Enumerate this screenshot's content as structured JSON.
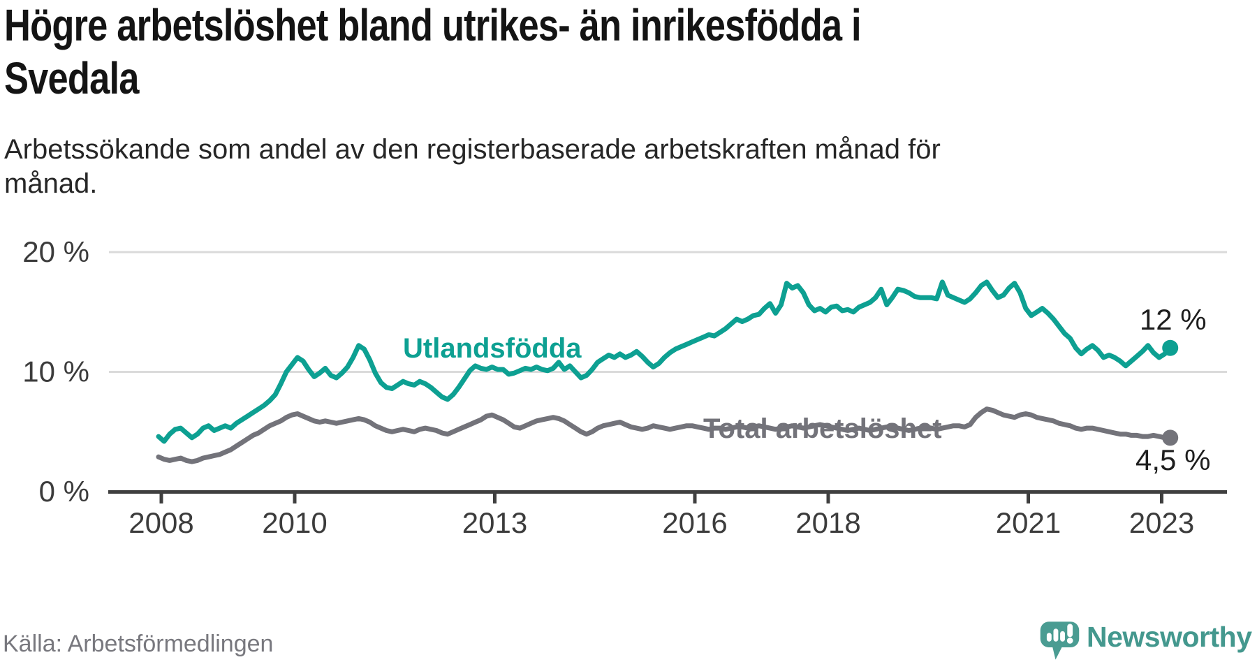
{
  "header": {
    "title": "Högre arbetslöshet bland utrikes- än inrikesfödda i Svedala",
    "title_lines": [
      "Högre arbetslöshet bland utrikes- än inrikesfödda i",
      "Svedala"
    ],
    "subtitle": "Arbetssökande som andel av den registerbaserade arbetskraften månad för månad.",
    "subtitle_lines": [
      "Arbetssökande som andel av den registerbaserade arbetskraften månad för",
      "månad."
    ]
  },
  "footer": {
    "source": "Källa: Arbetsförmedlingen",
    "brand": "Newsworthy"
  },
  "colors": {
    "accent_teal": "#0da092",
    "line_gray": "#73737a",
    "axis": "#3f3f3f",
    "grid": "#dadada",
    "text_dark": "#1e1e1e",
    "brand_teal": "#44988e",
    "brand_icon": "#4a9c92"
  },
  "chart_data": {
    "type": "line",
    "title": "Högre arbetslöshet bland utrikes- än inrikesfödda i Svedala",
    "subtitle": "Arbetssökande som andel av den registerbaserade arbetskraften månad för månad.",
    "x_start": "2008-01",
    "x_end": "2023-03",
    "x_freq": "monthly",
    "xticks": [
      2008,
      2010,
      2013,
      2016,
      2018,
      2021,
      2023
    ],
    "ylim": [
      0,
      20
    ],
    "yticks": [
      {
        "value": 0,
        "label": "0 %"
      },
      {
        "value": 10,
        "label": "10 %"
      },
      {
        "value": 20,
        "label": "20 %"
      }
    ],
    "grid": "horizontal",
    "legend": "inline-labels",
    "series": [
      {
        "name": "Utlandsfödda",
        "color": "#0da092",
        "end_label": "12 %",
        "values": [
          4.6,
          4.2,
          4.8,
          5.2,
          5.3,
          4.9,
          4.5,
          4.8,
          5.3,
          5.5,
          5.1,
          5.3,
          5.5,
          5.3,
          5.7,
          6.0,
          6.3,
          6.6,
          6.9,
          7.2,
          7.6,
          8.1,
          9.0,
          10.0,
          10.6,
          11.2,
          10.9,
          10.2,
          9.6,
          9.9,
          10.3,
          9.7,
          9.5,
          9.9,
          10.4,
          11.2,
          12.2,
          11.9,
          11.0,
          9.9,
          9.1,
          8.7,
          8.6,
          8.9,
          9.2,
          9.0,
          8.9,
          9.2,
          9.0,
          8.7,
          8.3,
          7.9,
          7.7,
          8.1,
          8.7,
          9.4,
          10.1,
          10.5,
          10.3,
          10.2,
          10.4,
          10.2,
          10.2,
          9.8,
          9.9,
          10.1,
          10.3,
          10.2,
          10.4,
          10.2,
          10.1,
          10.3,
          10.8,
          10.2,
          10.5,
          10.0,
          9.5,
          9.7,
          10.2,
          10.8,
          11.1,
          11.4,
          11.2,
          11.5,
          11.2,
          11.4,
          11.7,
          11.3,
          10.8,
          10.4,
          10.7,
          11.2,
          11.6,
          11.9,
          12.1,
          12.3,
          12.5,
          12.7,
          12.9,
          13.1,
          13.0,
          13.3,
          13.6,
          14.0,
          14.4,
          14.2,
          14.4,
          14.7,
          14.8,
          15.3,
          15.7,
          14.9,
          15.6,
          17.4,
          17.0,
          17.2,
          16.6,
          15.6,
          15.1,
          15.3,
          15.0,
          15.4,
          15.5,
          15.1,
          15.2,
          15.0,
          15.4,
          15.6,
          15.8,
          16.2,
          16.9,
          15.6,
          16.2,
          16.9,
          16.8,
          16.6,
          16.3,
          16.2,
          16.2,
          16.2,
          16.1,
          17.5,
          16.4,
          16.2,
          16.0,
          15.8,
          16.1,
          16.6,
          17.2,
          17.5,
          16.8,
          16.2,
          16.4,
          17.0,
          17.4,
          16.6,
          15.3,
          14.7,
          15.0,
          15.3,
          14.9,
          14.4,
          13.8,
          13.2,
          12.8,
          12.0,
          11.5,
          11.9,
          12.2,
          11.8,
          11.2,
          11.4,
          11.2,
          10.9,
          10.5,
          10.9,
          11.3,
          11.7,
          12.2,
          11.6,
          11.2,
          11.5,
          12.0
        ]
      },
      {
        "name": "Total arbetslöshet",
        "color": "#73737a",
        "end_label": "4,5 %",
        "values": [
          2.9,
          2.7,
          2.6,
          2.7,
          2.8,
          2.6,
          2.5,
          2.6,
          2.8,
          2.9,
          3.0,
          3.1,
          3.3,
          3.5,
          3.8,
          4.1,
          4.4,
          4.7,
          4.9,
          5.2,
          5.5,
          5.7,
          5.9,
          6.2,
          6.4,
          6.5,
          6.3,
          6.1,
          5.9,
          5.8,
          5.9,
          5.8,
          5.7,
          5.8,
          5.9,
          6.0,
          6.1,
          6.0,
          5.8,
          5.5,
          5.3,
          5.1,
          5.0,
          5.1,
          5.2,
          5.1,
          5.0,
          5.2,
          5.3,
          5.2,
          5.1,
          4.9,
          4.8,
          5.0,
          5.2,
          5.4,
          5.6,
          5.8,
          6.0,
          6.3,
          6.4,
          6.2,
          6.0,
          5.7,
          5.4,
          5.3,
          5.5,
          5.7,
          5.9,
          6.0,
          6.1,
          6.2,
          6.1,
          5.9,
          5.6,
          5.3,
          5.0,
          4.8,
          5.0,
          5.3,
          5.5,
          5.6,
          5.7,
          5.8,
          5.6,
          5.4,
          5.3,
          5.2,
          5.3,
          5.5,
          5.4,
          5.3,
          5.2,
          5.3,
          5.4,
          5.5,
          5.5,
          5.4,
          5.3,
          5.2,
          5.3,
          5.3,
          5.2,
          5.3,
          5.4,
          5.4,
          5.3,
          5.4,
          5.5,
          5.4,
          5.3,
          5.2,
          5.3,
          5.4,
          5.5,
          5.4,
          5.3,
          5.4,
          5.5,
          5.6,
          5.5,
          5.4,
          5.3,
          5.2,
          5.1,
          5.2,
          5.3,
          5.2,
          5.1,
          5.2,
          5.3,
          5.4,
          5.4,
          5.3,
          5.2,
          5.1,
          5.2,
          5.3,
          5.4,
          5.3,
          5.2,
          5.3,
          5.4,
          5.5,
          5.5,
          5.4,
          5.6,
          6.2,
          6.6,
          6.9,
          6.8,
          6.6,
          6.4,
          6.3,
          6.2,
          6.4,
          6.5,
          6.4,
          6.2,
          6.1,
          6.0,
          5.9,
          5.7,
          5.6,
          5.5,
          5.3,
          5.2,
          5.3,
          5.3,
          5.2,
          5.1,
          5.0,
          4.9,
          4.8,
          4.8,
          4.7,
          4.7,
          4.6,
          4.6,
          4.7,
          4.6,
          4.5,
          4.5
        ]
      }
    ]
  }
}
